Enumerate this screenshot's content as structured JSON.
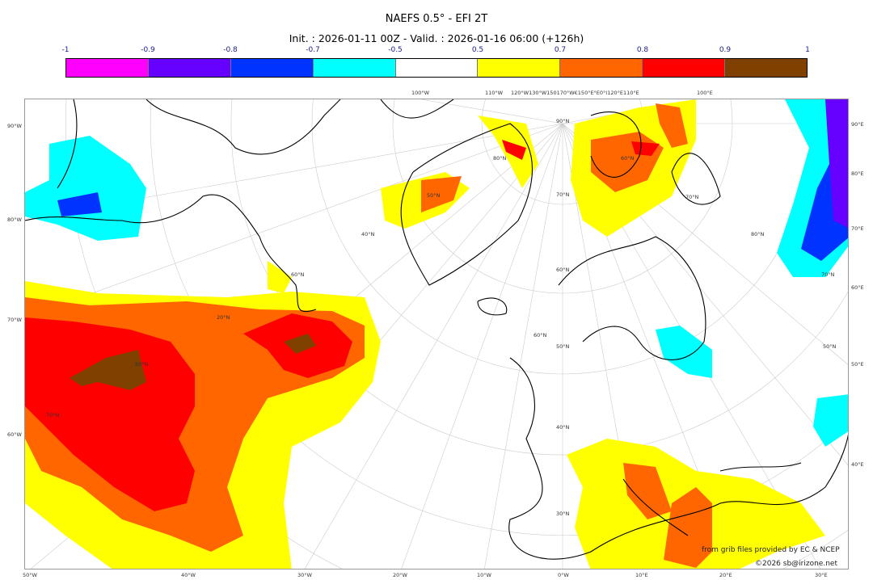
{
  "title": "NAEFS 0.5° - EFI 2T",
  "subtitle": "Init. : 2026-01-11 00Z - Valid. : 2026-01-16 06:00 (+126h)",
  "colorbar": {
    "ticks": [
      "-1",
      "-0.9",
      "-0.8",
      "-0.7",
      "-0.5",
      "0.5",
      "0.7",
      "0.8",
      "0.9",
      "1"
    ],
    "colors": [
      "#ff00ff",
      "#6600ff",
      "#0033ff",
      "#00ffff",
      "#ffffff",
      "#ffff00",
      "#ff6600",
      "#ff0000",
      "#804000"
    ]
  },
  "axes": {
    "bottom": [
      "50°W",
      "40°W",
      "30°W",
      "20°W",
      "10°W",
      "0°W",
      "10°E",
      "20°E",
      "30°E"
    ],
    "left": [
      "90°W",
      "80°W",
      "70°W",
      "60°W"
    ],
    "right": [
      "90°E",
      "80°E",
      "70°E",
      "60°E",
      "50°E",
      "40°E"
    ],
    "top": [
      "100°W",
      "110°W",
      "120°W130°W150170°W€150°E°E0°I120°E",
      "110°E",
      "100°E"
    ],
    "lat_labels": [
      "90°N",
      "80°N",
      "70°N",
      "60°N",
      "50°N",
      "40°N",
      "30°N",
      "20°N",
      "80°N",
      "70°N",
      "60°N",
      "50°N",
      "40°N",
      "60°N",
      "70°N",
      "80°N",
      "70°N",
      "60°N",
      "50°N"
    ]
  },
  "credits": {
    "source": "from grib files provided by EC & NCEP",
    "copyright": "©2026 sb@irizone.net"
  }
}
